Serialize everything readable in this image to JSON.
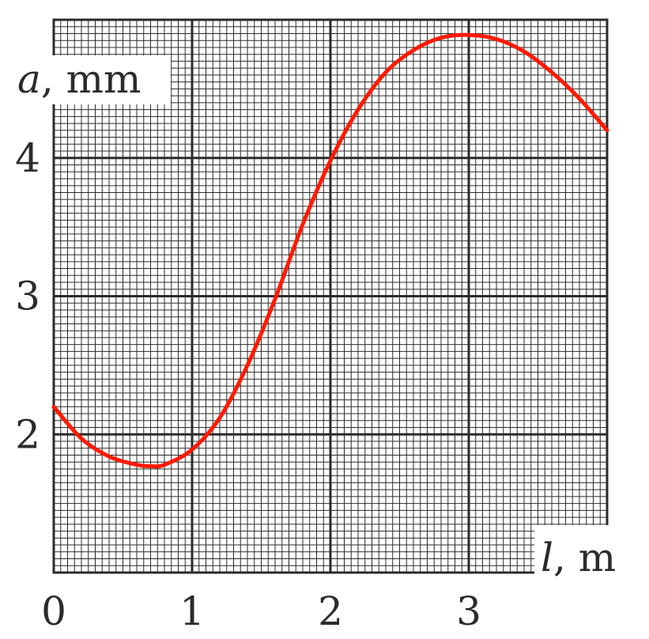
{
  "chart_data": {
    "type": "line",
    "title": "",
    "xlabel_var": "l",
    "xlabel_unit": ", m",
    "ylabel_var": "a",
    "ylabel_unit": ", mm",
    "xlim": [
      0,
      4
    ],
    "ylim": [
      1,
      5
    ],
    "x_ticks": [
      0,
      1,
      2,
      3
    ],
    "y_ticks": [
      2,
      3,
      4
    ],
    "x_tick_labels": [
      "0",
      "1",
      "2",
      "3"
    ],
    "y_tick_labels": [
      "2",
      "3",
      "4"
    ],
    "grid": true,
    "line_color": "#ff1a00",
    "grid_color": "#2b2b2b",
    "series": [
      {
        "x": [
          0,
          0.2,
          0.4,
          0.6,
          0.7,
          0.8,
          1.0,
          1.2,
          1.4,
          1.6,
          1.8,
          2.0,
          2.2,
          2.4,
          2.6,
          2.8,
          3.0,
          3.2,
          3.4,
          3.6,
          3.8,
          4.0
        ],
        "y": [
          2.2,
          1.97,
          1.84,
          1.78,
          1.77,
          1.78,
          1.89,
          2.12,
          2.5,
          2.98,
          3.52,
          3.98,
          4.35,
          4.62,
          4.78,
          4.87,
          4.89,
          4.86,
          4.77,
          4.62,
          4.43,
          4.2
        ]
      }
    ]
  }
}
